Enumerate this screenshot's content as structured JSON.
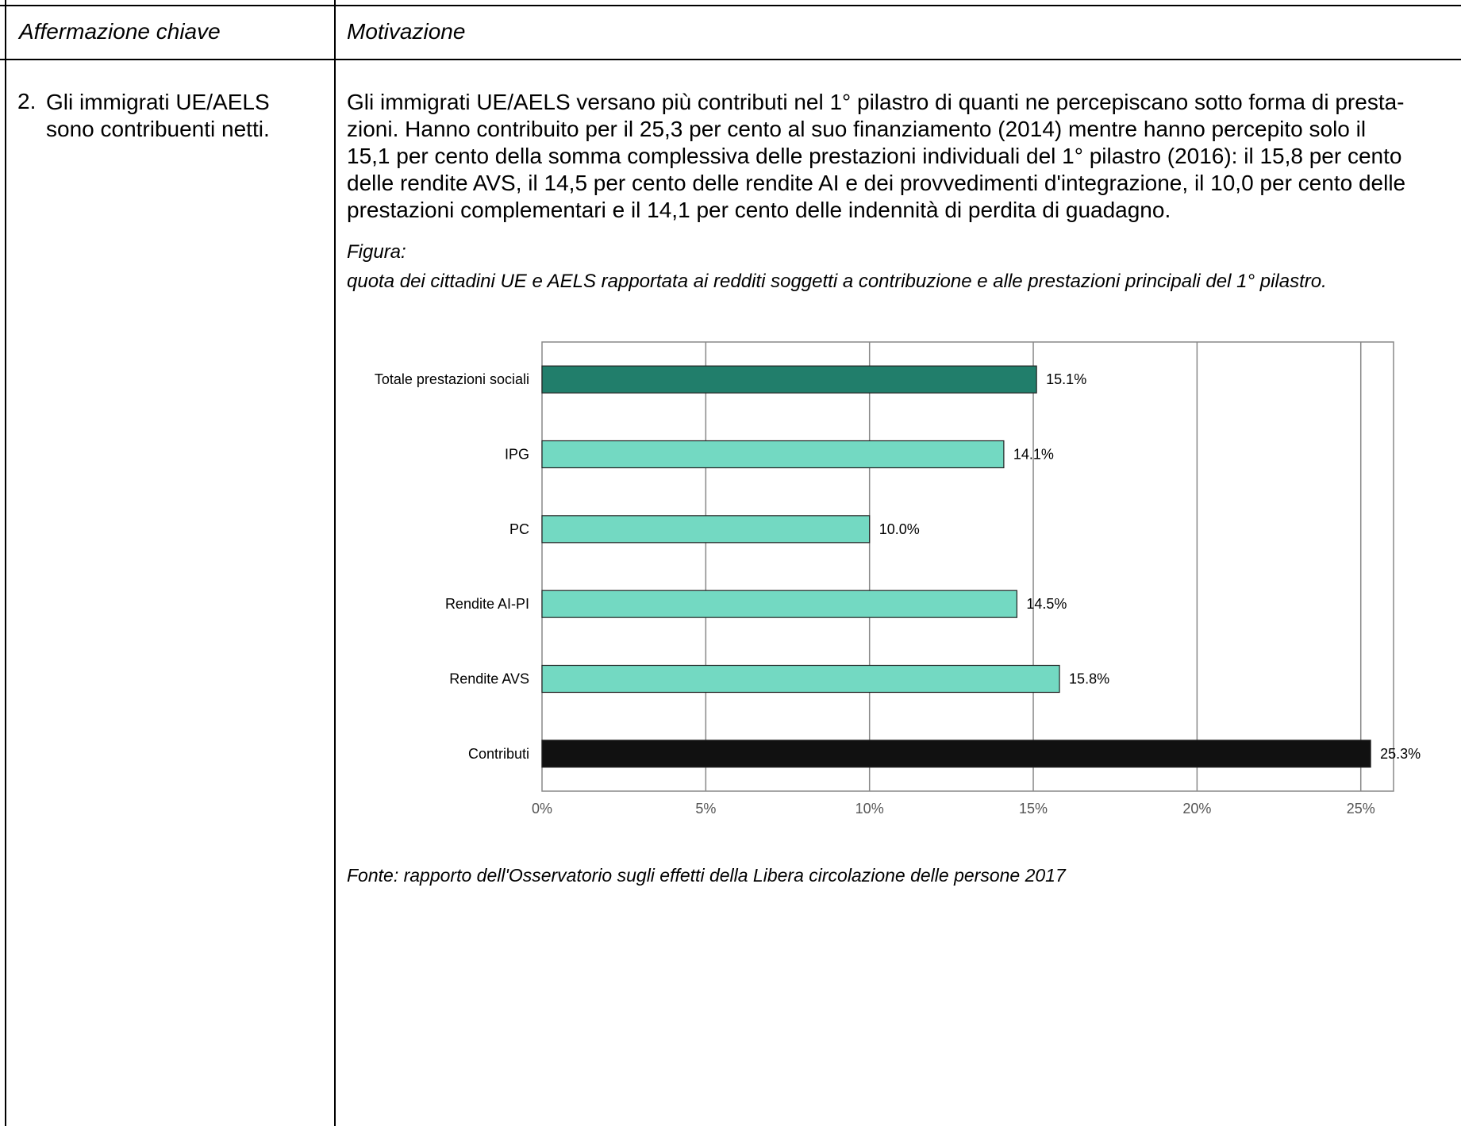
{
  "header": {
    "col1": "Affermazione chiave",
    "col2": "Motivazione"
  },
  "claim": {
    "number": "2.",
    "text": "Gli immigrati UE/AELS sono contribuenti netti."
  },
  "reason": {
    "lines": [
      "Gli immigrati UE/AELS versano più contributi nel 1° pilastro di quanti ne percepiscano sotto forma di presta-",
      "zioni. Hanno contribuito per il 25,3 per cento al suo finanziamento (2014) mentre hanno percepito solo il",
      "15,1 per cento della somma complessiva delle prestazioni individuali del 1° pilastro (2016): il 15,8 per cento",
      "delle rendite AVS, il 14,5 per cento delle rendite AI e dei provvedimenti d'integrazione, il 10,0 per cento delle",
      "prestazioni complementari e il 14,1 per cento delle indennità di perdita di guadagno."
    ]
  },
  "figure": {
    "label": "Figura:",
    "caption": "quota dei cittadini UE e AELS rapportata ai redditi soggetti a contribuzione e alle prestazioni principali del 1° pilastro."
  },
  "source": "Fonte: rapporto dell'Osservatorio sugli effetti della Libera circolazione delle persone 2017",
  "chart_data": {
    "type": "bar",
    "orientation": "horizontal",
    "categories": [
      "Totale prestazioni sociali",
      "IPG",
      "PC",
      "Rendite AI-PI",
      "Rendite AVS",
      "Contributi"
    ],
    "values": [
      15.1,
      14.1,
      10.0,
      14.5,
      15.8,
      25.3
    ],
    "value_labels": [
      "15.1%",
      "14.1%",
      "10.0%",
      "14.5%",
      "15.8%",
      "25.3%"
    ],
    "bar_colors": [
      "#217e6b",
      "#73d9c2",
      "#73d9c2",
      "#73d9c2",
      "#73d9c2",
      "#111111"
    ],
    "xlim": [
      0,
      26
    ],
    "xticks": [
      0,
      5,
      10,
      15,
      20,
      25
    ],
    "xtick_labels": [
      "0%",
      "5%",
      "10%",
      "15%",
      "20%",
      "25%"
    ],
    "grid": true,
    "legend": "none"
  }
}
